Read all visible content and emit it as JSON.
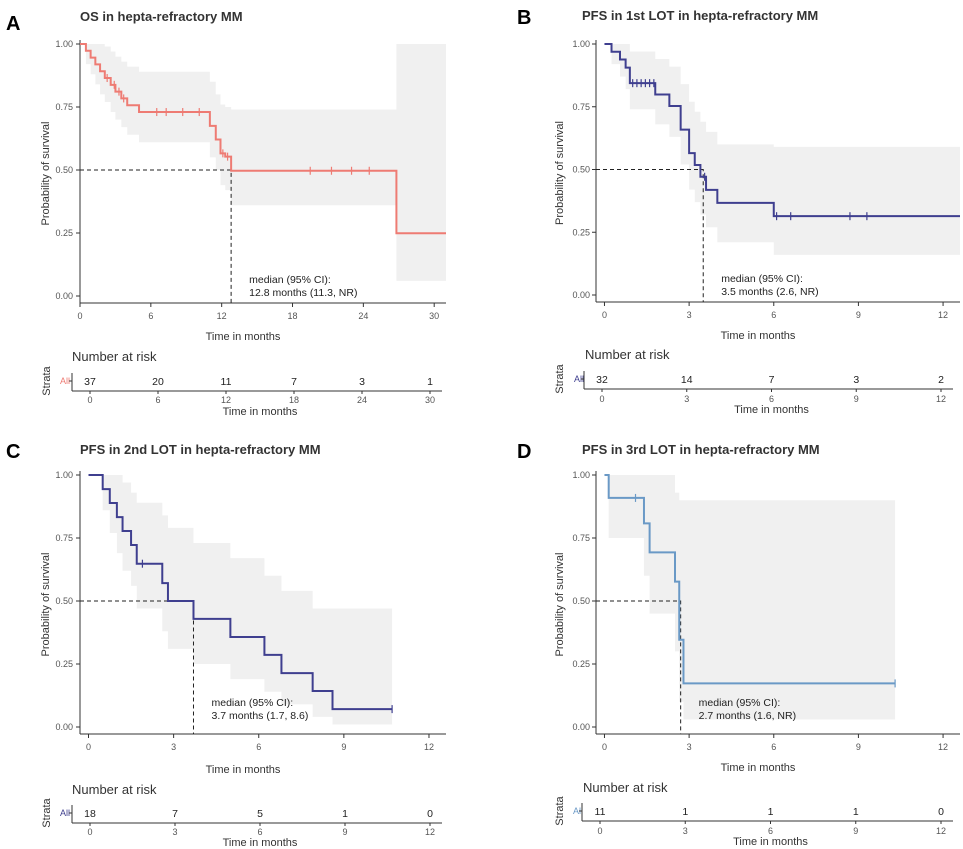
{
  "ylabel": "Probability of survival",
  "xlabel": "Time in months",
  "risk_header": "Number at risk",
  "strata_label": "Strata",
  "strata_level": "All",
  "chart_data": [
    {
      "letter": "A",
      "type": "line",
      "title": "OS in hepta-refractory MM",
      "color": "#ee7b73",
      "xlim": [
        0,
        31
      ],
      "xticks": [
        0,
        6,
        12,
        18,
        24,
        30
      ],
      "ylim": [
        0,
        1
      ],
      "yticks": [
        0.0,
        0.25,
        0.5,
        0.75,
        1.0
      ],
      "ytick_labels": [
        "0.00",
        "0.25",
        "0.50",
        "0.75",
        "1.00"
      ],
      "x": [
        0,
        0.5,
        0.9,
        1.3,
        1.7,
        2.1,
        2.6,
        3.0,
        3.5,
        4.0,
        5.0,
        11.0,
        11.5,
        11.9,
        12.3,
        12.8,
        26.8,
        31
      ],
      "y": [
        1.0,
        0.973,
        0.946,
        0.919,
        0.892,
        0.865,
        0.838,
        0.811,
        0.784,
        0.757,
        0.73,
        0.675,
        0.621,
        0.566,
        0.553,
        0.497,
        0.249,
        0.249
      ],
      "ci_lower": [
        1.0,
        0.92,
        0.88,
        0.84,
        0.8,
        0.77,
        0.73,
        0.7,
        0.67,
        0.64,
        0.61,
        0.55,
        0.5,
        0.44,
        0.42,
        0.36,
        0.06,
        0.06
      ],
      "ci_upper": [
        1.0,
        1.0,
        1.0,
        1.0,
        1.0,
        0.99,
        0.97,
        0.95,
        0.93,
        0.91,
        0.89,
        0.85,
        0.8,
        0.76,
        0.75,
        0.74,
        1.0,
        1.0
      ],
      "censor_x": [
        2.3,
        2.9,
        3.3,
        3.7,
        6.5,
        7.3,
        8.7,
        10.1,
        12.1,
        12.5,
        19.5,
        21.3,
        23.0,
        24.5
      ],
      "median": 12.8,
      "annotation": [
        "median (95% CI):",
        "12.8 months (11.3, NR)"
      ],
      "risk_times": [
        0,
        6,
        12,
        18,
        24,
        30
      ],
      "risk_counts": [
        "37",
        "20",
        "11",
        "7",
        "3",
        "1"
      ]
    },
    {
      "letter": "B",
      "type": "line",
      "title": "PFS in 1st LOT in hepta-refractory MM",
      "color": "#3f3f8f",
      "xlim": [
        -0.3,
        12.6
      ],
      "xticks": [
        0,
        3,
        6,
        9,
        12
      ],
      "ylim": [
        0,
        1
      ],
      "yticks": [
        0.0,
        0.25,
        0.5,
        0.75,
        1.0
      ],
      "ytick_labels": [
        "0.00",
        "0.25",
        "0.50",
        "0.75",
        "1.00"
      ],
      "x": [
        0,
        0.25,
        0.55,
        0.75,
        0.9,
        1.8,
        2.3,
        2.7,
        3.0,
        3.2,
        3.4,
        3.6,
        4.0,
        4.5,
        6.0,
        12.6
      ],
      "y": [
        1.0,
        0.969,
        0.938,
        0.906,
        0.844,
        0.799,
        0.753,
        0.659,
        0.565,
        0.518,
        0.471,
        0.419,
        0.367,
        0.367,
        0.314,
        0.314
      ],
      "ci_lower": [
        1.0,
        0.92,
        0.87,
        0.82,
        0.74,
        0.68,
        0.63,
        0.52,
        0.42,
        0.37,
        0.32,
        0.27,
        0.21,
        0.21,
        0.16,
        0.16
      ],
      "ci_upper": [
        1.0,
        1.0,
        1.0,
        1.0,
        0.97,
        0.94,
        0.91,
        0.84,
        0.77,
        0.73,
        0.69,
        0.65,
        0.6,
        0.6,
        0.59,
        0.59
      ],
      "censor_x": [
        1.0,
        1.15,
        1.3,
        1.45,
        1.6,
        1.75,
        3.55,
        6.1,
        6.6,
        8.7,
        9.3
      ],
      "median": 3.5,
      "annotation": [
        "median (95% CI):",
        "3.5 months (2.6, NR)"
      ],
      "risk_times": [
        0,
        3,
        6,
        9,
        12
      ],
      "risk_counts": [
        "32",
        "14",
        "7",
        "3",
        "2"
      ]
    },
    {
      "letter": "C",
      "type": "line",
      "title": "PFS in 2nd LOT in hepta-refractory MM",
      "color": "#3f3f8f",
      "xlim": [
        -0.3,
        12.6
      ],
      "xticks": [
        0,
        3,
        6,
        9,
        12
      ],
      "ylim": [
        0,
        1
      ],
      "yticks": [
        0.0,
        0.25,
        0.5,
        0.75,
        1.0
      ],
      "ytick_labels": [
        "0.00",
        "0.25",
        "0.50",
        "0.75",
        "1.00"
      ],
      "x": [
        0,
        0.5,
        0.75,
        1.0,
        1.2,
        1.5,
        1.7,
        2.6,
        2.8,
        3.7,
        5.0,
        6.2,
        6.8,
        7.9,
        8.6,
        10.7
      ],
      "y": [
        1.0,
        0.944,
        0.889,
        0.833,
        0.778,
        0.722,
        0.648,
        0.571,
        0.5,
        0.429,
        0.357,
        0.286,
        0.214,
        0.143,
        0.071,
        0.071
      ],
      "ci_lower": [
        1.0,
        0.86,
        0.77,
        0.69,
        0.62,
        0.56,
        0.47,
        0.38,
        0.31,
        0.25,
        0.19,
        0.14,
        0.09,
        0.04,
        0.01,
        0.01
      ],
      "ci_upper": [
        1.0,
        1.0,
        1.0,
        1.0,
        0.97,
        0.93,
        0.89,
        0.84,
        0.79,
        0.73,
        0.67,
        0.6,
        0.54,
        0.47,
        0.47,
        0.47
      ],
      "censor_x": [
        1.9,
        10.7
      ],
      "median": 3.7,
      "annotation": [
        "median (95% CI):",
        "3.7 months (1.7, 8.6)"
      ],
      "risk_times": [
        0,
        3,
        6,
        9,
        12
      ],
      "risk_counts": [
        "18",
        "7",
        "5",
        "1",
        "0"
      ]
    },
    {
      "letter": "D",
      "type": "line",
      "title": "PFS in 3rd LOT in hepta-refractory MM",
      "color": "#6a99c6",
      "xlim": [
        -0.3,
        12.6
      ],
      "xticks": [
        0,
        3,
        6,
        9,
        12
      ],
      "ylim": [
        0,
        1
      ],
      "yticks": [
        0.0,
        0.25,
        0.5,
        0.75,
        1.0
      ],
      "ytick_labels": [
        "0.00",
        "0.25",
        "0.50",
        "0.75",
        "1.00"
      ],
      "x": [
        0,
        0.15,
        1.4,
        1.6,
        2.5,
        2.65,
        2.8,
        10.3
      ],
      "y": [
        1.0,
        0.909,
        0.808,
        0.693,
        0.577,
        0.346,
        0.173,
        0.173
      ],
      "ci_lower": [
        1.0,
        0.75,
        0.6,
        0.45,
        0.3,
        0.1,
        0.03,
        0.03
      ],
      "ci_upper": [
        1.0,
        1.0,
        1.0,
        1.0,
        0.93,
        0.9,
        0.9,
        0.9
      ],
      "censor_x": [
        1.1,
        10.3
      ],
      "median": 2.7,
      "annotation": [
        "median (95% CI):",
        "2.7 months (1.6, NR)"
      ],
      "risk_times": [
        0,
        3,
        6,
        9,
        12
      ],
      "risk_counts": [
        "11",
        "1",
        "1",
        "1",
        "0"
      ]
    }
  ]
}
